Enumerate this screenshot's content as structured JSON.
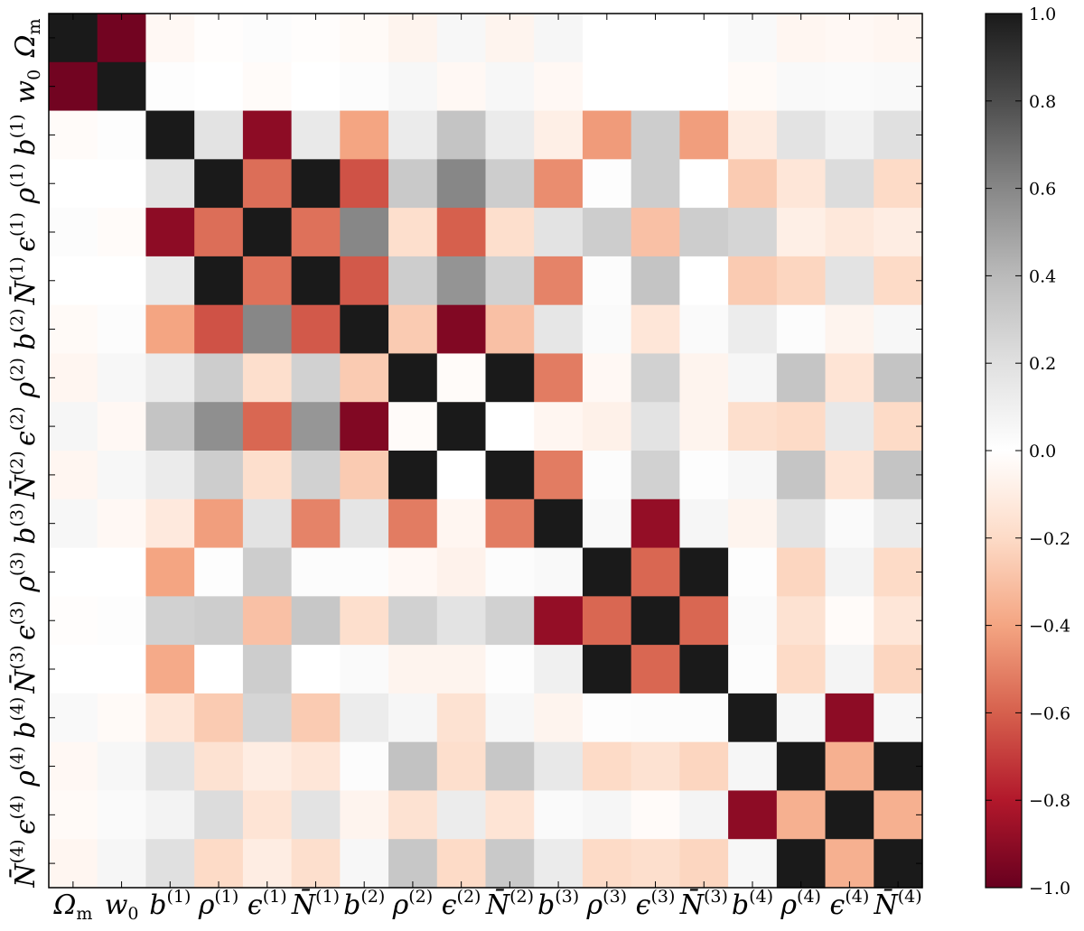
{
  "chart_data": {
    "type": "heatmap",
    "title": "",
    "xlabel": "",
    "ylabel": "",
    "row_labels": [
      {
        "base": "Ω",
        "sub": "m"
      },
      {
        "base": "w",
        "sub": "0"
      },
      {
        "base": "b",
        "sup": "(1)"
      },
      {
        "base": "ρ",
        "sup": "(1)"
      },
      {
        "base": "ϵ",
        "sup": "(1)"
      },
      {
        "base": "N̄",
        "sup": "(1)"
      },
      {
        "base": "b",
        "sup": "(2)"
      },
      {
        "base": "ρ",
        "sup": "(2)"
      },
      {
        "base": "ϵ",
        "sup": "(2)"
      },
      {
        "base": "N̄",
        "sup": "(2)"
      },
      {
        "base": "b",
        "sup": "(3)"
      },
      {
        "base": "ρ",
        "sup": "(3)"
      },
      {
        "base": "ϵ",
        "sup": "(3)"
      },
      {
        "base": "N̄",
        "sup": "(3)"
      },
      {
        "base": "b",
        "sup": "(4)"
      },
      {
        "base": "ρ",
        "sup": "(4)"
      },
      {
        "base": "ϵ",
        "sup": "(4)"
      },
      {
        "base": "N̄",
        "sup": "(4)"
      }
    ],
    "col_labels": [
      {
        "base": "Ω",
        "sub": "m"
      },
      {
        "base": "w",
        "sub": "0"
      },
      {
        "base": "b",
        "sup": "(1)"
      },
      {
        "base": "ρ",
        "sup": "(1)"
      },
      {
        "base": "ϵ",
        "sup": "(1)"
      },
      {
        "base": "N̄",
        "sup": "(1)"
      },
      {
        "base": "b",
        "sup": "(2)"
      },
      {
        "base": "ρ",
        "sup": "(2)"
      },
      {
        "base": "ϵ",
        "sup": "(2)"
      },
      {
        "base": "N̄",
        "sup": "(2)"
      },
      {
        "base": "b",
        "sup": "(3)"
      },
      {
        "base": "ρ",
        "sup": "(3)"
      },
      {
        "base": "ϵ",
        "sup": "(3)"
      },
      {
        "base": "N̄",
        "sup": "(3)"
      },
      {
        "base": "b",
        "sup": "(4)"
      },
      {
        "base": "ρ",
        "sup": "(4)"
      },
      {
        "base": "ϵ",
        "sup": "(4)"
      },
      {
        "base": "N̄",
        "sup": "(4)"
      }
    ],
    "values": [
      [
        1.0,
        -0.97,
        -0.04,
        -0.01,
        0.02,
        -0.01,
        -0.03,
        -0.06,
        0.05,
        -0.06,
        0.06,
        0.0,
        0.0,
        0.0,
        0.04,
        -0.05,
        -0.04,
        -0.05
      ],
      [
        -0.97,
        1.0,
        0.01,
        0.0,
        -0.02,
        0.0,
        0.02,
        0.05,
        -0.04,
        0.05,
        -0.04,
        0.0,
        0.0,
        0.0,
        -0.03,
        0.04,
        0.03,
        0.04
      ],
      [
        -0.02,
        0.01,
        1.0,
        0.18,
        -0.9,
        0.14,
        -0.4,
        0.13,
        0.35,
        0.13,
        -0.09,
        -0.43,
        0.3,
        -0.42,
        -0.11,
        0.18,
        0.09,
        0.2
      ],
      [
        0.0,
        0.0,
        0.18,
        1.0,
        -0.56,
        1.0,
        -0.64,
        0.32,
        0.6,
        0.3,
        -0.47,
        0.01,
        0.3,
        0.0,
        -0.26,
        -0.14,
        0.22,
        -0.2
      ],
      [
        0.02,
        -0.02,
        -0.9,
        -0.56,
        1.0,
        -0.55,
        0.6,
        -0.18,
        -0.6,
        -0.18,
        0.18,
        0.3,
        -0.3,
        0.3,
        0.26,
        -0.09,
        -0.13,
        -0.1
      ],
      [
        0.0,
        0.0,
        0.14,
        1.0,
        -0.55,
        1.0,
        -0.62,
        0.3,
        0.55,
        0.28,
        -0.5,
        0.02,
        0.35,
        0.0,
        -0.26,
        -0.22,
        0.18,
        -0.2
      ],
      [
        -0.03,
        0.02,
        -0.4,
        -0.64,
        0.6,
        -0.62,
        1.0,
        -0.26,
        -0.93,
        -0.3,
        0.16,
        0.03,
        -0.14,
        0.03,
        0.12,
        0.02,
        -0.06,
        0.05
      ],
      [
        -0.05,
        0.05,
        0.13,
        0.3,
        -0.18,
        0.28,
        -0.26,
        1.0,
        -0.02,
        1.0,
        -0.52,
        -0.04,
        0.28,
        -0.06,
        0.06,
        0.34,
        -0.15,
        0.35
      ],
      [
        0.06,
        -0.04,
        0.35,
        0.57,
        -0.58,
        0.54,
        -0.93,
        -0.02,
        1.0,
        0.0,
        -0.05,
        -0.08,
        0.18,
        -0.06,
        -0.18,
        -0.2,
        0.15,
        -0.2
      ],
      [
        -0.05,
        0.05,
        0.13,
        0.3,
        -0.18,
        0.28,
        -0.26,
        1.0,
        0.0,
        1.0,
        -0.52,
        0.02,
        0.28,
        0.01,
        0.05,
        0.34,
        -0.15,
        0.35
      ],
      [
        0.05,
        -0.04,
        -0.12,
        -0.42,
        0.18,
        -0.5,
        0.17,
        -0.52,
        -0.05,
        -0.52,
        1.0,
        0.04,
        -0.88,
        0.06,
        -0.06,
        0.18,
        0.03,
        0.13
      ],
      [
        0.0,
        0.0,
        -0.4,
        0.01,
        0.3,
        0.02,
        0.02,
        -0.04,
        -0.07,
        0.02,
        0.04,
        1.0,
        -0.58,
        1.0,
        0.01,
        -0.22,
        0.08,
        -0.2
      ],
      [
        -0.01,
        0.01,
        0.28,
        0.3,
        -0.3,
        0.33,
        -0.18,
        0.28,
        0.18,
        0.28,
        -0.88,
        -0.58,
        1.0,
        -0.58,
        0.03,
        -0.16,
        -0.02,
        -0.14
      ],
      [
        0.0,
        0.0,
        -0.38,
        0.0,
        0.3,
        0.0,
        0.03,
        -0.06,
        -0.06,
        0.01,
        0.1,
        1.0,
        -0.58,
        1.0,
        0.02,
        -0.2,
        0.07,
        -0.22
      ],
      [
        0.04,
        -0.03,
        -0.14,
        -0.26,
        0.26,
        -0.26,
        0.12,
        0.06,
        -0.16,
        0.05,
        -0.06,
        0.01,
        0.02,
        0.02,
        1.0,
        0.06,
        -0.9,
        0.05
      ],
      [
        -0.04,
        0.05,
        0.18,
        -0.16,
        -0.1,
        -0.14,
        0.02,
        0.36,
        -0.18,
        0.33,
        0.15,
        -0.2,
        -0.16,
        -0.22,
        0.06,
        1.0,
        -0.36,
        1.0
      ],
      [
        -0.03,
        0.03,
        0.08,
        0.22,
        -0.15,
        0.18,
        -0.06,
        -0.16,
        0.12,
        -0.15,
        0.03,
        0.06,
        -0.02,
        0.07,
        -0.9,
        -0.36,
        1.0,
        -0.36
      ],
      [
        -0.05,
        0.06,
        0.2,
        -0.2,
        -0.1,
        -0.18,
        0.05,
        0.33,
        -0.2,
        0.32,
        0.13,
        -0.2,
        -0.18,
        -0.22,
        0.05,
        1.0,
        -0.36,
        1.0
      ]
    ],
    "colorbar": {
      "range": [
        -1.0,
        1.0
      ],
      "ticks": [
        {
          "value": 1.0,
          "label": "1.0"
        },
        {
          "value": 0.8,
          "label": "0.8"
        },
        {
          "value": 0.6,
          "label": "0.6"
        },
        {
          "value": 0.4,
          "label": "0.4"
        },
        {
          "value": 0.2,
          "label": "0.2"
        },
        {
          "value": 0.0,
          "label": "0.0"
        },
        {
          "value": -0.2,
          "label": "−0.2"
        },
        {
          "value": -0.4,
          "label": "−0.4"
        },
        {
          "value": -0.6,
          "label": "−0.6"
        },
        {
          "value": -0.8,
          "label": "−0.8"
        },
        {
          "value": -1.0,
          "label": "−1.0"
        }
      ],
      "colormap": "RdGy",
      "stops": [
        "#67001f",
        "#b2182b",
        "#d6604d",
        "#f4a582",
        "#fddbc7",
        "#ffffff",
        "#e0e0e0",
        "#bababa",
        "#878787",
        "#4d4d4d",
        "#1a1a1a"
      ]
    },
    "grid": false,
    "legend": "colorbar-right"
  }
}
